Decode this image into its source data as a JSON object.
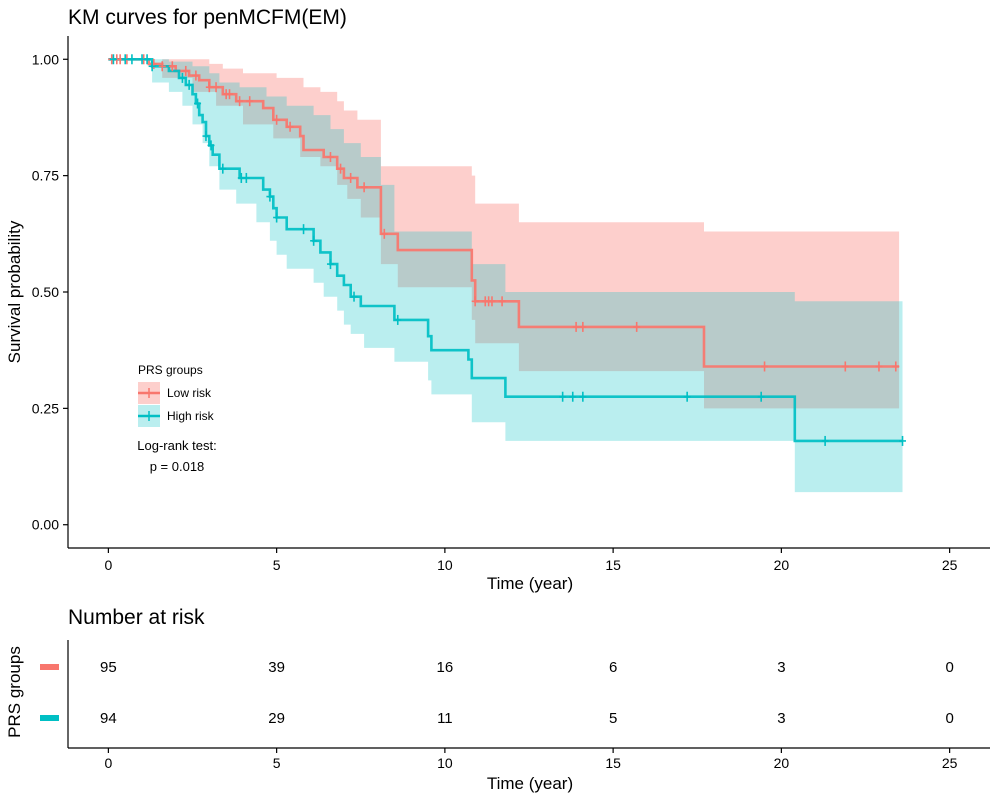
{
  "chart_data": {
    "type": "line",
    "title": "KM curves for penMCFM(EM)",
    "xlabel": "Time (year)",
    "ylabel": "Survival probability",
    "xlim": [
      -1.2,
      26.2
    ],
    "ylim": [
      -0.05,
      1.05
    ],
    "x_ticks": [
      0,
      5,
      10,
      15,
      20,
      25
    ],
    "y_ticks": [
      0.0,
      0.25,
      0.5,
      0.75,
      1.0
    ],
    "y_tick_labels": [
      "0.00",
      "0.25",
      "0.50",
      "0.75",
      "1.00"
    ],
    "legend": {
      "title": "PRS groups",
      "placement": "center-left",
      "entries": [
        "Low risk",
        "High risk"
      ]
    },
    "annotation": [
      "Log-rank test:",
      "p = 0.018"
    ],
    "series": [
      {
        "name": "Low risk",
        "color": "#F8766D",
        "steps": [
          [
            0,
            1.0
          ],
          [
            1.2,
            0.99
          ],
          [
            1.6,
            0.985
          ],
          [
            2.0,
            0.975
          ],
          [
            2.4,
            0.965
          ],
          [
            2.7,
            0.955
          ],
          [
            3.0,
            0.94
          ],
          [
            3.4,
            0.925
          ],
          [
            3.8,
            0.91
          ],
          [
            4.6,
            0.895
          ],
          [
            4.9,
            0.87
          ],
          [
            5.3,
            0.855
          ],
          [
            5.7,
            0.835
          ],
          [
            5.8,
            0.805
          ],
          [
            6.4,
            0.79
          ],
          [
            6.8,
            0.765
          ],
          [
            7.0,
            0.745
          ],
          [
            7.4,
            0.725
          ],
          [
            8.1,
            0.625
          ],
          [
            8.6,
            0.59
          ],
          [
            10.8,
            0.525
          ],
          [
            10.9,
            0.48
          ],
          [
            12.2,
            0.425
          ],
          [
            17.7,
            0.34
          ],
          [
            23.5,
            0.34
          ]
        ],
        "lower": [
          [
            0,
            1.0
          ],
          [
            1.6,
            0.96
          ],
          [
            2.5,
            0.93
          ],
          [
            3.2,
            0.9
          ],
          [
            4.0,
            0.86
          ],
          [
            4.9,
            0.83
          ],
          [
            5.7,
            0.79
          ],
          [
            6.3,
            0.77
          ],
          [
            6.8,
            0.73
          ],
          [
            7.1,
            0.7
          ],
          [
            7.5,
            0.66
          ],
          [
            8.1,
            0.56
          ],
          [
            8.6,
            0.51
          ],
          [
            10.8,
            0.44
          ],
          [
            10.9,
            0.39
          ],
          [
            12.2,
            0.33
          ],
          [
            17.7,
            0.25
          ],
          [
            23.5,
            0.25
          ]
        ],
        "upper": [
          [
            0,
            1.0
          ],
          [
            2.0,
            1.0
          ],
          [
            3.0,
            0.99
          ],
          [
            3.4,
            0.98
          ],
          [
            4.0,
            0.97
          ],
          [
            5.0,
            0.96
          ],
          [
            5.8,
            0.94
          ],
          [
            6.3,
            0.93
          ],
          [
            6.8,
            0.91
          ],
          [
            7.0,
            0.89
          ],
          [
            7.4,
            0.87
          ],
          [
            8.1,
            0.77
          ],
          [
            10.8,
            0.75
          ],
          [
            10.9,
            0.69
          ],
          [
            12.2,
            0.65
          ],
          [
            17.7,
            0.63
          ],
          [
            23.5,
            0.63
          ]
        ],
        "censor_x": [
          0.1,
          0.25,
          0.35,
          0.55,
          1.05,
          1.35,
          1.6,
          1.9,
          2.3,
          2.6,
          3.0,
          3.2,
          3.5,
          3.6,
          3.9,
          4.2,
          5.0,
          5.4,
          6.6,
          6.9,
          7.2,
          7.6,
          8.2,
          10.9,
          11.2,
          11.3,
          11.4,
          11.7,
          13.9,
          14.1,
          15.7,
          19.5,
          21.9,
          22.9,
          23.4
        ],
        "at_risk": [
          95,
          39,
          16,
          6,
          3,
          0
        ]
      },
      {
        "name": "High risk",
        "color": "#00BFC4",
        "steps": [
          [
            0,
            1.0
          ],
          [
            1.3,
            0.985
          ],
          [
            1.8,
            0.975
          ],
          [
            2.1,
            0.96
          ],
          [
            2.3,
            0.945
          ],
          [
            2.5,
            0.925
          ],
          [
            2.6,
            0.905
          ],
          [
            2.7,
            0.88
          ],
          [
            2.8,
            0.865
          ],
          [
            2.9,
            0.835
          ],
          [
            3.0,
            0.815
          ],
          [
            3.1,
            0.795
          ],
          [
            3.3,
            0.765
          ],
          [
            3.9,
            0.745
          ],
          [
            4.6,
            0.72
          ],
          [
            4.8,
            0.705
          ],
          [
            4.9,
            0.68
          ],
          [
            5.0,
            0.66
          ],
          [
            5.3,
            0.635
          ],
          [
            6.1,
            0.61
          ],
          [
            6.3,
            0.585
          ],
          [
            6.6,
            0.56
          ],
          [
            6.8,
            0.535
          ],
          [
            7.0,
            0.515
          ],
          [
            7.2,
            0.49
          ],
          [
            7.5,
            0.47
          ],
          [
            8.5,
            0.44
          ],
          [
            9.5,
            0.405
          ],
          [
            9.6,
            0.375
          ],
          [
            10.7,
            0.355
          ],
          [
            10.8,
            0.315
          ],
          [
            11.8,
            0.275
          ],
          [
            20.4,
            0.18
          ],
          [
            23.6,
            0.18
          ]
        ],
        "lower": [
          [
            0,
            1.0
          ],
          [
            1.3,
            0.95
          ],
          [
            1.8,
            0.93
          ],
          [
            2.2,
            0.9
          ],
          [
            2.5,
            0.86
          ],
          [
            2.8,
            0.82
          ],
          [
            3.0,
            0.77
          ],
          [
            3.3,
            0.72
          ],
          [
            3.8,
            0.69
          ],
          [
            4.4,
            0.65
          ],
          [
            4.8,
            0.61
          ],
          [
            5.0,
            0.58
          ],
          [
            5.3,
            0.55
          ],
          [
            6.1,
            0.52
          ],
          [
            6.4,
            0.49
          ],
          [
            6.8,
            0.46
          ],
          [
            7.0,
            0.43
          ],
          [
            7.2,
            0.41
          ],
          [
            7.6,
            0.38
          ],
          [
            8.5,
            0.35
          ],
          [
            9.5,
            0.31
          ],
          [
            9.6,
            0.28
          ],
          [
            10.8,
            0.22
          ],
          [
            11.8,
            0.18
          ],
          [
            20.4,
            0.07
          ],
          [
            23.6,
            0.07
          ]
        ],
        "upper": [
          [
            0,
            1.0
          ],
          [
            1.3,
            1.0
          ],
          [
            1.8,
            0.995
          ],
          [
            2.5,
            0.985
          ],
          [
            3.0,
            0.97
          ],
          [
            3.3,
            0.95
          ],
          [
            3.9,
            0.94
          ],
          [
            4.7,
            0.92
          ],
          [
            5.3,
            0.9
          ],
          [
            6.1,
            0.88
          ],
          [
            6.6,
            0.85
          ],
          [
            7.0,
            0.82
          ],
          [
            7.5,
            0.79
          ],
          [
            8.1,
            0.73
          ],
          [
            8.5,
            0.63
          ],
          [
            10.8,
            0.56
          ],
          [
            11.8,
            0.5
          ],
          [
            20.4,
            0.48
          ],
          [
            23.6,
            0.48
          ]
        ],
        "censor_x": [
          0.15,
          0.5,
          0.7,
          1.0,
          1.15,
          1.3,
          2.2,
          2.4,
          2.65,
          2.9,
          3.05,
          3.4,
          3.95,
          4.1,
          4.8,
          5.0,
          5.8,
          6.1,
          6.6,
          7.3,
          8.6,
          13.5,
          13.8,
          14.1,
          17.2,
          19.4,
          21.3,
          23.6
        ],
        "at_risk": [
          94,
          29,
          11,
          5,
          3,
          0
        ]
      }
    ],
    "risk_table": {
      "title": "Number at risk",
      "ylabel": "PRS groups",
      "xlabel": "Time (year)",
      "times": [
        0,
        5,
        10,
        15,
        20,
        25
      ]
    }
  }
}
